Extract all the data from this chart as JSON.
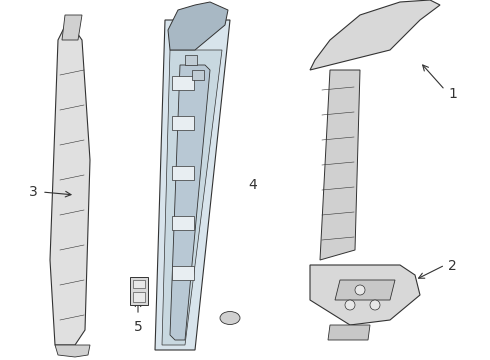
{
  "bg_color": "#ffffff",
  "line_color": "#333333",
  "fill_color": "#e8e8e8",
  "center_bg": "#dde8f0",
  "label_1": "1",
  "label_2": "2",
  "label_3": "3",
  "label_4": "4",
  "label_5": "5",
  "label_font_size": 10,
  "arrow_color": "#333333",
  "figsize": [
    4.9,
    3.6
  ],
  "dpi": 100
}
